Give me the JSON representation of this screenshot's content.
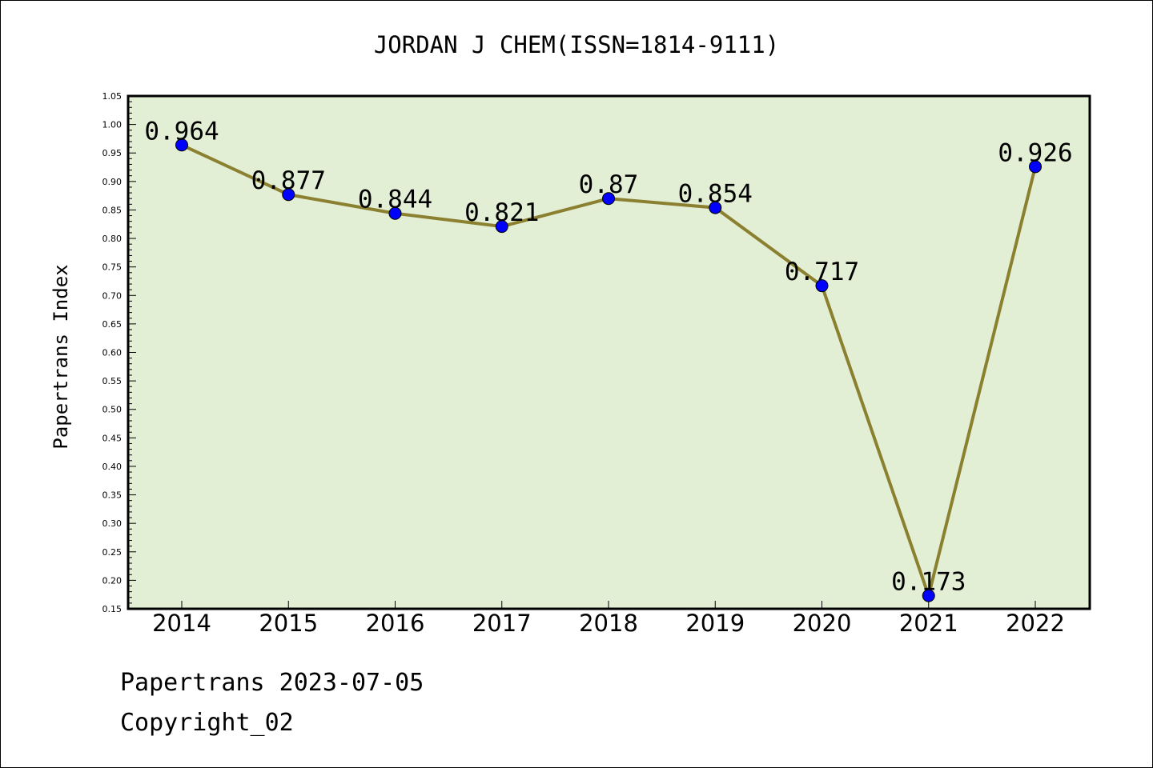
{
  "chart_data": {
    "type": "line",
    "title": "JORDAN J CHEM(ISSN=1814-9111)",
    "xlabel": "",
    "ylabel": "Papertrans Index",
    "categories": [
      "2014",
      "2015",
      "2016",
      "2017",
      "2018",
      "2019",
      "2020",
      "2021",
      "2022"
    ],
    "values": [
      0.964,
      0.877,
      0.844,
      0.821,
      0.87,
      0.854,
      0.717,
      0.173,
      0.926
    ],
    "data_labels": [
      "0.964",
      "0.877",
      "0.844",
      "0.821",
      "0.87",
      "0.854",
      "0.717",
      "0.173",
      "0.926"
    ],
    "ylim": [
      0.15,
      1.05
    ],
    "yticks": [
      "0.15",
      "0.20",
      "0.25",
      "0.30",
      "0.35",
      "0.40",
      "0.45",
      "0.50",
      "0.55",
      "0.60",
      "0.65",
      "0.70",
      "0.75",
      "0.80",
      "0.85",
      "0.90",
      "0.95",
      "1.00",
      "1.05"
    ],
    "grid": false,
    "colors": {
      "plot_background": "#e2efd5",
      "line": "#8b8030",
      "marker": "#0000ff"
    }
  },
  "footer": {
    "line1": "Papertrans 2023-07-05",
    "line2": "Copyright_02"
  }
}
